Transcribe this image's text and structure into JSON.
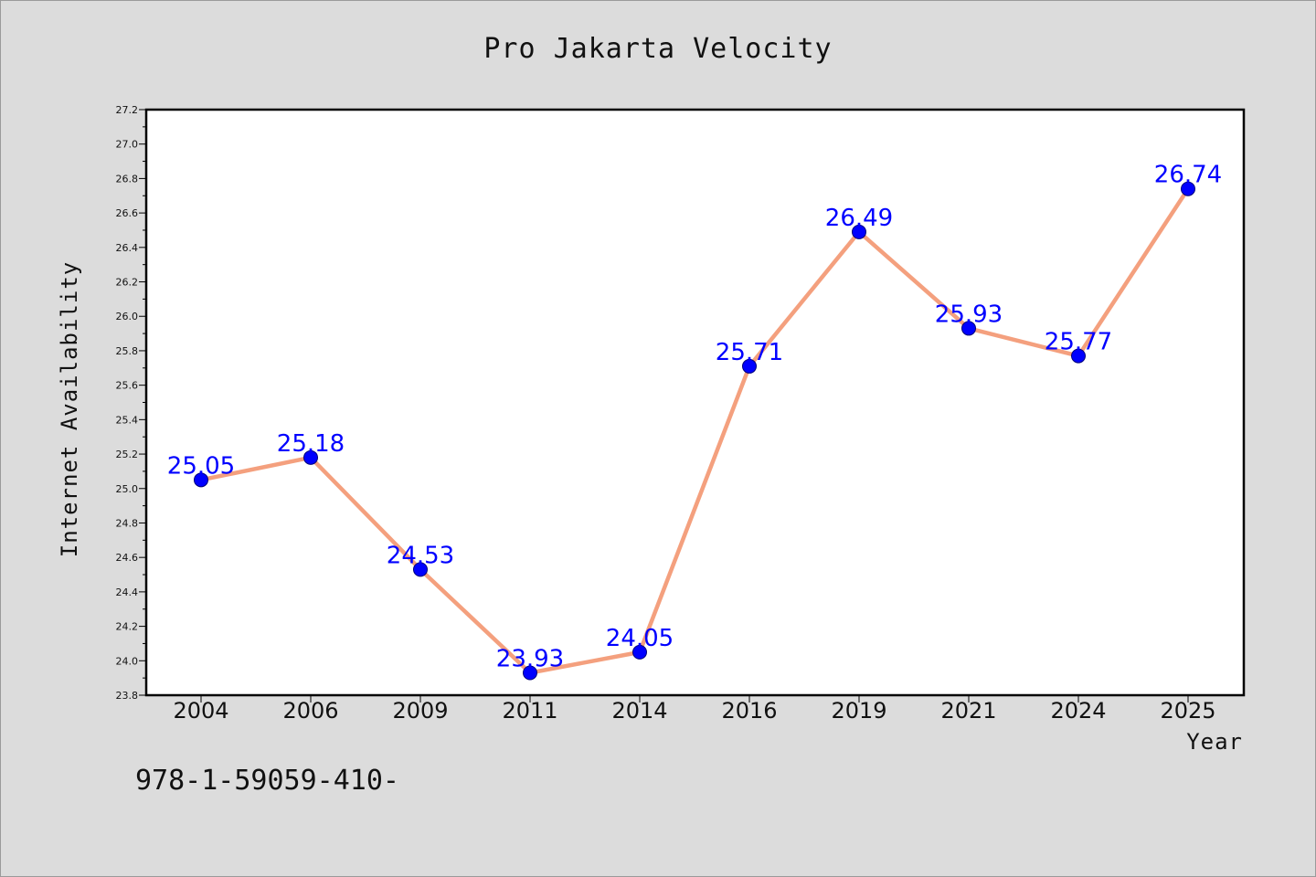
{
  "chart_data": {
    "type": "line",
    "title": "Pro Jakarta Velocity",
    "xlabel": "Year",
    "ylabel": "Internet Availability",
    "categories": [
      "2004",
      "2006",
      "2009",
      "2011",
      "2014",
      "2016",
      "2019",
      "2021",
      "2024",
      "2025"
    ],
    "series": [
      {
        "values": [
          25.05,
          25.18,
          24.53,
          23.93,
          24.05,
          25.71,
          26.49,
          25.93,
          25.77,
          26.74
        ],
        "data_labels": [
          "25.05",
          "25.18",
          "24.53",
          "23.93",
          "24.05",
          "25.71",
          "26.49",
          "25.93",
          "25.77",
          "26.74"
        ]
      }
    ],
    "ylim": [
      23.8,
      27.2
    ],
    "yticks": [
      "23.8",
      "24.0",
      "24.2",
      "24.4",
      "24.6",
      "24.8",
      "25.0",
      "25.2",
      "25.4",
      "25.6",
      "25.8",
      "26.0",
      "26.2",
      "26.4",
      "26.6",
      "26.8",
      "27.0",
      "27.2"
    ],
    "grid": false,
    "legend": "none",
    "colors": {
      "line": "#f4a07e",
      "marker": "#0000ff",
      "label": "#0000ff",
      "background": "#dcdcdc",
      "plot_background": "#ffffff"
    }
  },
  "footer_text": "978-1-59059-410-"
}
